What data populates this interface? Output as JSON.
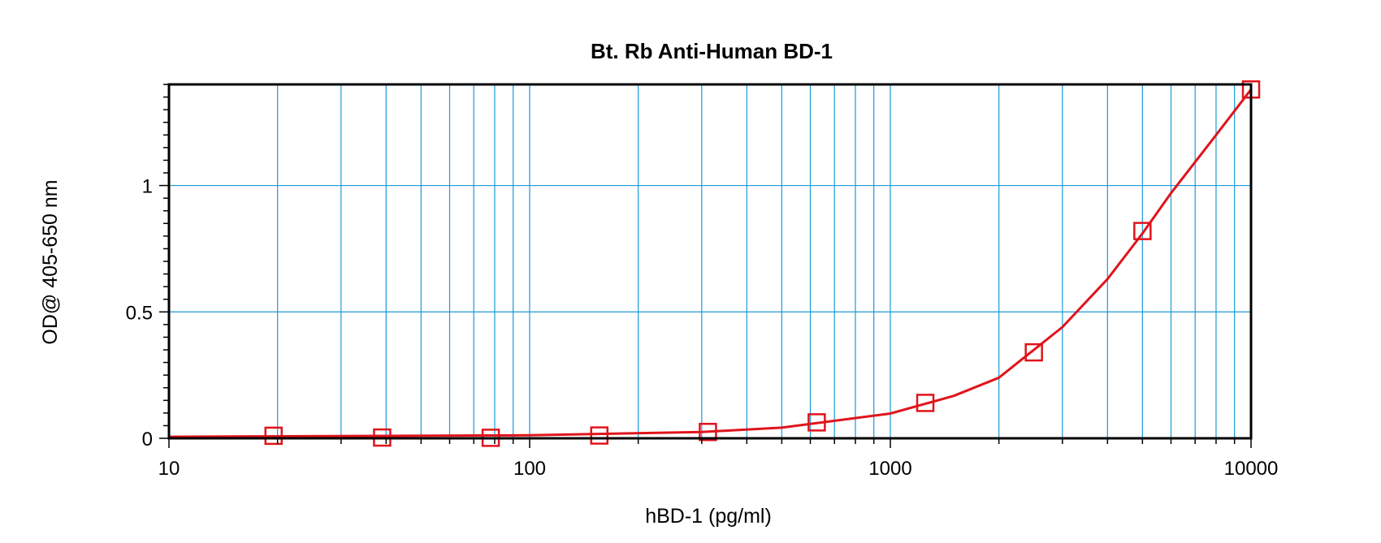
{
  "chart_data": {
    "type": "scatter",
    "title": "Bt. Rb Anti-Human BD-1",
    "xlabel": "hBD-1 (pg/ml)",
    "ylabel": "OD@ 405-650 nm",
    "xscale": "log",
    "xlim": [
      10,
      10000
    ],
    "ylim": [
      0,
      1.4
    ],
    "x_ticks": [
      10,
      100,
      1000,
      10000
    ],
    "x_tick_labels": [
      "10",
      "100",
      "1000",
      "10000"
    ],
    "y_ticks": [
      0,
      0.5,
      1
    ],
    "y_tick_labels": [
      "0",
      "0.5",
      "1"
    ],
    "grid": true,
    "legend": "none",
    "series": [
      {
        "marker": "open-square",
        "points": [
          {
            "x": 19.5,
            "y": 0.01
          },
          {
            "x": 39,
            "y": 0.003
          },
          {
            "x": 78,
            "y": 0.002
          },
          {
            "x": 156,
            "y": 0.011
          },
          {
            "x": 312,
            "y": 0.025
          },
          {
            "x": 625,
            "y": 0.063
          },
          {
            "x": 1250,
            "y": 0.14
          },
          {
            "x": 2500,
            "y": 0.34
          },
          {
            "x": 5000,
            "y": 0.82
          },
          {
            "x": 10000,
            "y": 1.38
          }
        ]
      }
    ],
    "fit_curve": {
      "type": "4PL",
      "points": [
        {
          "x": 10,
          "y": 0.006
        },
        {
          "x": 100,
          "y": 0.012
        },
        {
          "x": 300,
          "y": 0.025
        },
        {
          "x": 500,
          "y": 0.042
        },
        {
          "x": 1000,
          "y": 0.098
        },
        {
          "x": 1500,
          "y": 0.168
        },
        {
          "x": 2000,
          "y": 0.24
        },
        {
          "x": 3000,
          "y": 0.44
        },
        {
          "x": 4000,
          "y": 0.63
        },
        {
          "x": 5000,
          "y": 0.81
        },
        {
          "x": 6000,
          "y": 0.97
        },
        {
          "x": 8000,
          "y": 1.2
        },
        {
          "x": 10000,
          "y": 1.38
        }
      ]
    },
    "colors": {
      "grid": "#1a9ad6",
      "series": "#e0141c",
      "axis": "#000000"
    }
  }
}
